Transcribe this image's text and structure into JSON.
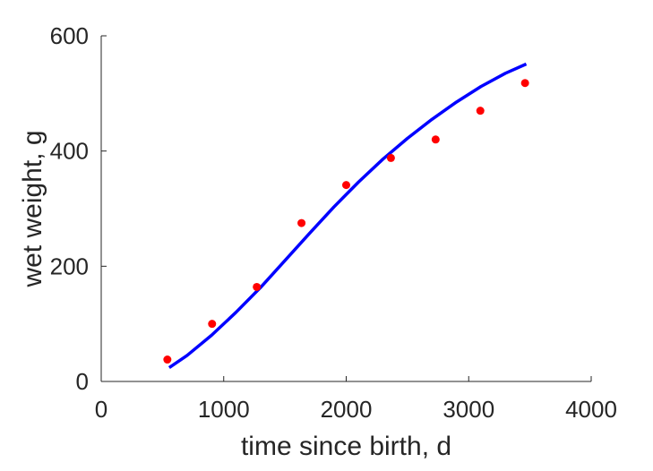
{
  "chart_data": {
    "type": "scatter",
    "xlabel": "time since birth, d",
    "ylabel": "wet weight, g",
    "xlim": [
      0,
      4000
    ],
    "ylim": [
      0,
      600
    ],
    "xticks": [
      0,
      1000,
      2000,
      3000,
      4000
    ],
    "yticks": [
      0,
      200,
      400,
      600
    ],
    "xtick_labels": [
      "0",
      "1000",
      "2000",
      "3000",
      "4000"
    ],
    "ytick_labels": [
      "0",
      "200",
      "400",
      "600"
    ],
    "grid": false,
    "series": [
      {
        "kind": "points",
        "color": "#ff0000",
        "x": [
          540,
          905,
          1270,
          1635,
          2000,
          2365,
          2730,
          3095,
          3460
        ],
        "y": [
          38,
          100,
          164,
          275,
          341,
          388,
          420,
          470,
          518
        ]
      },
      {
        "kind": "line",
        "color": "#0000ff",
        "x": [
          555,
          700,
          900,
          1100,
          1300,
          1500,
          1700,
          1900,
          2100,
          2300,
          2500,
          2700,
          2900,
          3100,
          3300,
          3470
        ],
        "y": [
          24,
          45,
          80,
          120,
          163,
          210,
          257,
          303,
          346,
          386,
          422,
          455,
          485,
          512,
          535,
          551
        ]
      }
    ]
  }
}
